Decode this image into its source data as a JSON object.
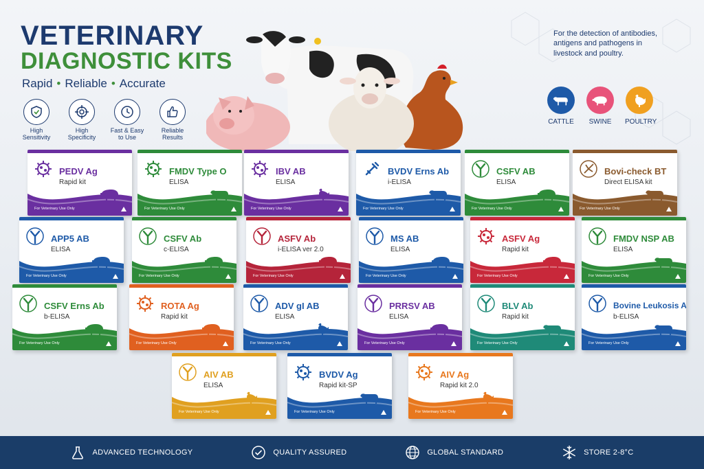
{
  "header": {
    "title_line1": "VETERINARY",
    "title_line2": "DIAGNOSTIC KITS",
    "tagline": [
      "Rapid",
      "Reliable",
      "Accurate"
    ],
    "description": "For the detection of antibodies, antigens and pathogens in livestock and poultry."
  },
  "features": [
    {
      "label": "High Sensitivity",
      "icon": "shield-check-icon"
    },
    {
      "label": "High Specificity",
      "icon": "target-icon"
    },
    {
      "label": "Fast & Easy to Use",
      "icon": "clock-icon"
    },
    {
      "label": "Reliable Results",
      "icon": "thumbs-up-icon"
    }
  ],
  "species": [
    {
      "label": "CATTLE",
      "color": "#1e5aa8",
      "icon": "cow-icon"
    },
    {
      "label": "SWINE",
      "color": "#e8537a",
      "icon": "pig-icon"
    },
    {
      "label": "POULTRY",
      "color": "#f0a020",
      "icon": "chicken-icon"
    }
  ],
  "kits": [
    {
      "name": "PEDV Ag",
      "sub": "Rapid kit",
      "color": "#6a2fa0",
      "logo": "virus",
      "animal": "pig"
    },
    {
      "name": "FMDV Type O",
      "sub": "ELISA",
      "color": "#2e8b3a",
      "logo": "virus",
      "animal": "cow"
    },
    {
      "name": "IBV AB",
      "sub": "ELISA",
      "color": "#6a2fa0",
      "logo": "virus",
      "animal": "chicken"
    },
    {
      "name": "BVDV Erns Ab",
      "sub": "i-ELISA",
      "color": "#1e5aa8",
      "logo": "syringe",
      "animal": "cow"
    },
    {
      "name": "CSFV AB",
      "sub": "ELISA",
      "color": "#2e8b3a",
      "logo": "antibody",
      "animal": "pig"
    },
    {
      "name": "Bovi-check BT",
      "sub": "Direct ELISA kit",
      "color": "#8a5a2e",
      "logo": "mosquito",
      "animal": "cow"
    },
    {
      "name": "APP5 AB",
      "sub": "ELISA",
      "color": "#1e5aa8",
      "logo": "antibody",
      "animal": "pig"
    },
    {
      "name": "CSFV Ab",
      "sub": "c-ELISA",
      "color": "#2e8b3a",
      "logo": "antibody",
      "animal": "pig"
    },
    {
      "name": "ASFV Ab",
      "sub": "i-ELISA ver 2.0",
      "color": "#b5243a",
      "logo": "antibody",
      "animal": "pig"
    },
    {
      "name": "MS AB",
      "sub": "ELISA",
      "color": "#1e5aa8",
      "logo": "antibody",
      "animal": "pig"
    },
    {
      "name": "ASFV Ag",
      "sub": "Rapid kit",
      "color": "#c8283a",
      "logo": "virus",
      "animal": "pig"
    },
    {
      "name": "FMDV NSP AB",
      "sub": "ELISA",
      "color": "#2e8b3a",
      "logo": "antibody",
      "animal": "cow"
    },
    {
      "name": "CSFV Erns Ab",
      "sub": "b-ELISA",
      "color": "#2e8b3a",
      "logo": "antibody",
      "animal": "pig"
    },
    {
      "name": "ROTA Ag",
      "sub": "Rapid kit",
      "color": "#e06020",
      "logo": "virus",
      "animal": "pig"
    },
    {
      "name": "ADV gI AB",
      "sub": "ELISA",
      "color": "#1e5aa8",
      "logo": "antibody",
      "animal": "chicken"
    },
    {
      "name": "PRRSV AB",
      "sub": "ELISA",
      "color": "#6a2fa0",
      "logo": "antibody",
      "animal": "pig"
    },
    {
      "name": "BLV Ab",
      "sub": "Rapid kit",
      "color": "#1f8a78",
      "logo": "antibody",
      "animal": "cow"
    },
    {
      "name": "Bovine Leukosis Ab",
      "sub": "b-ELISA",
      "color": "#1e5aa8",
      "logo": "antibody",
      "animal": "cow"
    },
    {
      "name": "AIV AB",
      "sub": "ELISA",
      "color": "#e0a020",
      "logo": "antibody",
      "animal": "chicken"
    },
    {
      "name": "BVDV Ag",
      "sub": "Rapid kit-SP",
      "color": "#1e5aa8",
      "logo": "virus",
      "animal": "cow"
    },
    {
      "name": "AIV Ag",
      "sub": "Rapid kit 2.0",
      "color": "#e8781e",
      "logo": "virus",
      "animal": "chicken"
    }
  ],
  "kit_footer_text": "For Veterinary Use Only",
  "footer": [
    {
      "label": "ADVANCED TECHNOLOGY",
      "icon": "flask-icon"
    },
    {
      "label": "QUALITY ASSURED",
      "icon": "check-circle-icon"
    },
    {
      "label": "GLOBAL STANDARD",
      "icon": "globe-icon"
    },
    {
      "label": "STORE 2-8°C",
      "icon": "snowflake-icon"
    }
  ]
}
